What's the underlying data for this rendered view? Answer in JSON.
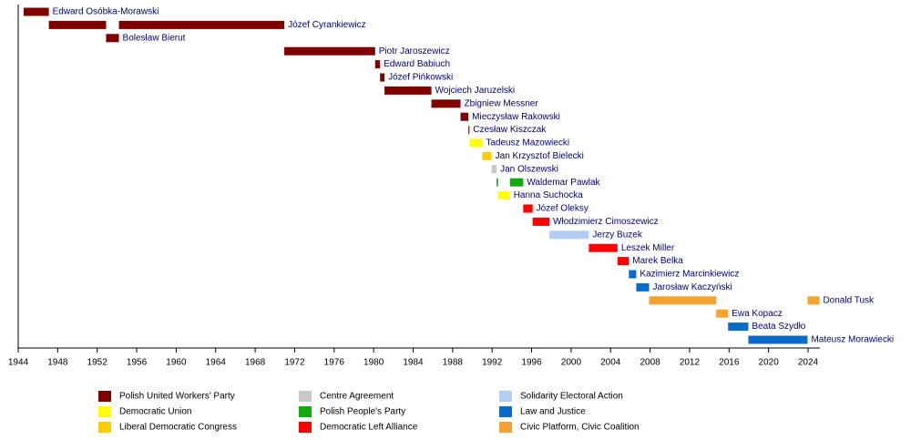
{
  "chart_data": {
    "type": "timeline",
    "xlim": [
      1944,
      2025.2
    ],
    "xticks": [
      1944,
      1948,
      1952,
      1956,
      1960,
      1964,
      1968,
      1972,
      1976,
      1980,
      1984,
      1988,
      1992,
      1996,
      2000,
      2004,
      2008,
      2012,
      2016,
      2020,
      2024
    ],
    "rows": [
      {
        "name": "Edward Osóbka-Morawski",
        "terms": [
          {
            "start": 1944.55,
            "end": 1947.1,
            "color": "#800000"
          }
        ]
      },
      {
        "name": "Józef Cyrankiewicz",
        "terms": [
          {
            "start": 1947.1,
            "end": 1952.9,
            "color": "#800000"
          },
          {
            "start": 1954.2,
            "end": 1970.95,
            "color": "#800000"
          }
        ]
      },
      {
        "name": "Bolesław Bierut",
        "terms": [
          {
            "start": 1952.9,
            "end": 1954.2,
            "color": "#800000"
          }
        ]
      },
      {
        "name": "Piotr Jaroszewicz",
        "terms": [
          {
            "start": 1970.95,
            "end": 1980.15,
            "color": "#800000"
          }
        ]
      },
      {
        "name": "Edward Babiuch",
        "terms": [
          {
            "start": 1980.15,
            "end": 1980.65,
            "color": "#800000"
          }
        ]
      },
      {
        "name": "Józef Pińkowski",
        "terms": [
          {
            "start": 1980.65,
            "end": 1981.1,
            "color": "#800000"
          }
        ]
      },
      {
        "name": "Wojciech Jaruzelski",
        "terms": [
          {
            "start": 1981.1,
            "end": 1985.85,
            "color": "#800000"
          }
        ]
      },
      {
        "name": "Zbigniew Messner",
        "terms": [
          {
            "start": 1985.85,
            "end": 1988.8,
            "color": "#800000"
          }
        ]
      },
      {
        "name": "Mieczysław Rakowski",
        "terms": [
          {
            "start": 1988.8,
            "end": 1989.6,
            "color": "#800000"
          }
        ]
      },
      {
        "name": "Czesław Kiszczak",
        "terms": [
          {
            "start": 1989.6,
            "end": 1989.7,
            "color": "#800000"
          }
        ]
      },
      {
        "name": "Tadeusz Mazowiecki",
        "terms": [
          {
            "start": 1989.7,
            "end": 1991.0,
            "color": "#ffff00"
          }
        ]
      },
      {
        "name": "Jan Krzysztof Bielecki",
        "terms": [
          {
            "start": 1991.0,
            "end": 1991.95,
            "color": "#ffcc00"
          }
        ]
      },
      {
        "name": "Jan Olszewski",
        "terms": [
          {
            "start": 1991.95,
            "end": 1992.45,
            "color": "#c8c8c8"
          }
        ]
      },
      {
        "name": "Waldemar Pawlak",
        "terms": [
          {
            "start": 1992.45,
            "end": 1992.6,
            "color": "#11aa11"
          },
          {
            "start": 1993.8,
            "end": 1995.15,
            "color": "#11aa11"
          }
        ]
      },
      {
        "name": "Hanna Suchocka",
        "terms": [
          {
            "start": 1992.6,
            "end": 1993.8,
            "color": "#ffff00"
          }
        ]
      },
      {
        "name": "Józef Oleksy",
        "terms": [
          {
            "start": 1995.15,
            "end": 1996.1,
            "color": "#ff0000"
          }
        ]
      },
      {
        "name": "Włodzimierz Cimoszewicz",
        "terms": [
          {
            "start": 1996.1,
            "end": 1997.8,
            "color": "#ff0000"
          }
        ]
      },
      {
        "name": "Jerzy Buzek",
        "terms": [
          {
            "start": 1997.8,
            "end": 2001.8,
            "color": "#b4cdf5"
          }
        ]
      },
      {
        "name": "Leszek Miller",
        "terms": [
          {
            "start": 2001.8,
            "end": 2004.7,
            "color": "#ff0000"
          }
        ]
      },
      {
        "name": "Marek Belka",
        "terms": [
          {
            "start": 2004.7,
            "end": 2005.85,
            "color": "#ff0000"
          }
        ]
      },
      {
        "name": "Kazimierz Marcinkiewicz",
        "terms": [
          {
            "start": 2005.85,
            "end": 2006.6,
            "color": "#0a6bc9"
          }
        ]
      },
      {
        "name": "Jarosław Kaczyński",
        "terms": [
          {
            "start": 2006.6,
            "end": 2007.9,
            "color": "#0a6bc9"
          }
        ]
      },
      {
        "name": "Donald Tusk",
        "terms": [
          {
            "start": 2007.9,
            "end": 2014.7,
            "color": "#f7a12f"
          },
          {
            "start": 2023.95,
            "end": 2025.15,
            "color": "#f7a12f"
          }
        ]
      },
      {
        "name": "Ewa Kopacz",
        "terms": [
          {
            "start": 2014.7,
            "end": 2015.9,
            "color": "#f7a12f"
          }
        ]
      },
      {
        "name": "Beata Szydło",
        "terms": [
          {
            "start": 2015.9,
            "end": 2017.95,
            "color": "#0a6bc9"
          }
        ]
      },
      {
        "name": "Mateusz Morawiecki",
        "terms": [
          {
            "start": 2017.95,
            "end": 2023.95,
            "color": "#0a6bc9"
          }
        ]
      }
    ],
    "legend": [
      {
        "name": "Polish United Workers' Party",
        "color": "#800000"
      },
      {
        "name": "Democratic Union",
        "color": "#ffff00"
      },
      {
        "name": "Liberal Democratic Congress",
        "color": "#ffcc00"
      },
      {
        "name": "Centre Agreement",
        "color": "#c8c8c8"
      },
      {
        "name": "Polish People's Party",
        "color": "#11aa11"
      },
      {
        "name": "Democratic Left Alliance",
        "color": "#ff0000"
      },
      {
        "name": "Solidarity Electoral Action",
        "color": "#b4cdf5"
      },
      {
        "name": "Law and Justice",
        "color": "#0a6bc9"
      },
      {
        "name": "Civic Platform, Civic Coalition",
        "color": "#f7a12f"
      }
    ]
  }
}
